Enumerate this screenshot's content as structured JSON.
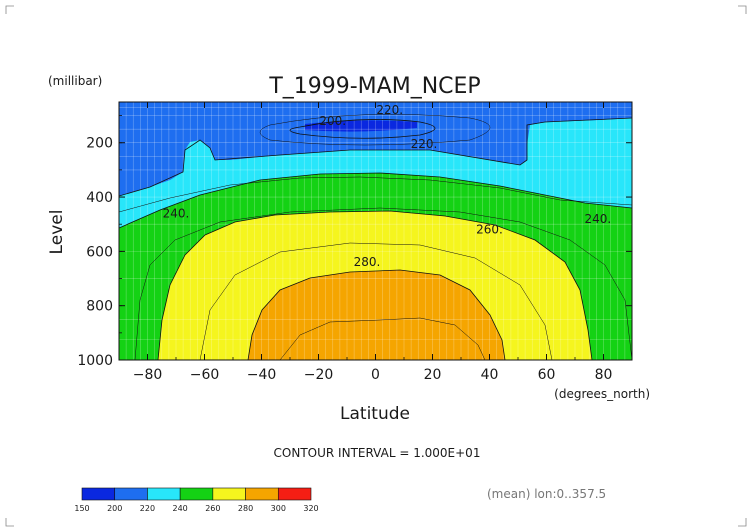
{
  "chart_data": {
    "type": "contour",
    "title": "T_1999-MAM_NCEP",
    "xlabel": "Latitude",
    "xunit": "(degrees_north)",
    "ylabel": "Level",
    "yunit": "(millibar)",
    "xlim": [
      -90,
      90
    ],
    "ylim": [
      1000,
      50
    ],
    "x_ticks": [
      -80,
      -60,
      -40,
      -20,
      0,
      20,
      40,
      60,
      80
    ],
    "y_ticks": [
      200,
      400,
      600,
      800,
      1000
    ],
    "contour_interval_text": "CONTOUR INTERVAL = 1.000E+01",
    "mean_text": "(mean) lon:0..357.5",
    "colorbar": {
      "levels": [
        150,
        200,
        220,
        240,
        260,
        280,
        300,
        320
      ],
      "colors": [
        "#0a28e0",
        "#1e6ef0",
        "#28e6fa",
        "#14d214",
        "#f5f51e",
        "#f5a500",
        "#f51e14"
      ]
    },
    "contour_labels": [
      {
        "text": "220.",
        "lat": 5,
        "p": 80
      },
      {
        "text": "200.",
        "lat": -15,
        "p": 120
      },
      {
        "text": "220.",
        "lat": 17,
        "p": 205
      },
      {
        "text": "240.",
        "lat": -70,
        "p": 460
      },
      {
        "text": "240.",
        "lat": 78,
        "p": 480
      },
      {
        "text": "260.",
        "lat": 40,
        "p": 520
      },
      {
        "text": "280.",
        "lat": -3,
        "p": 640
      }
    ]
  }
}
